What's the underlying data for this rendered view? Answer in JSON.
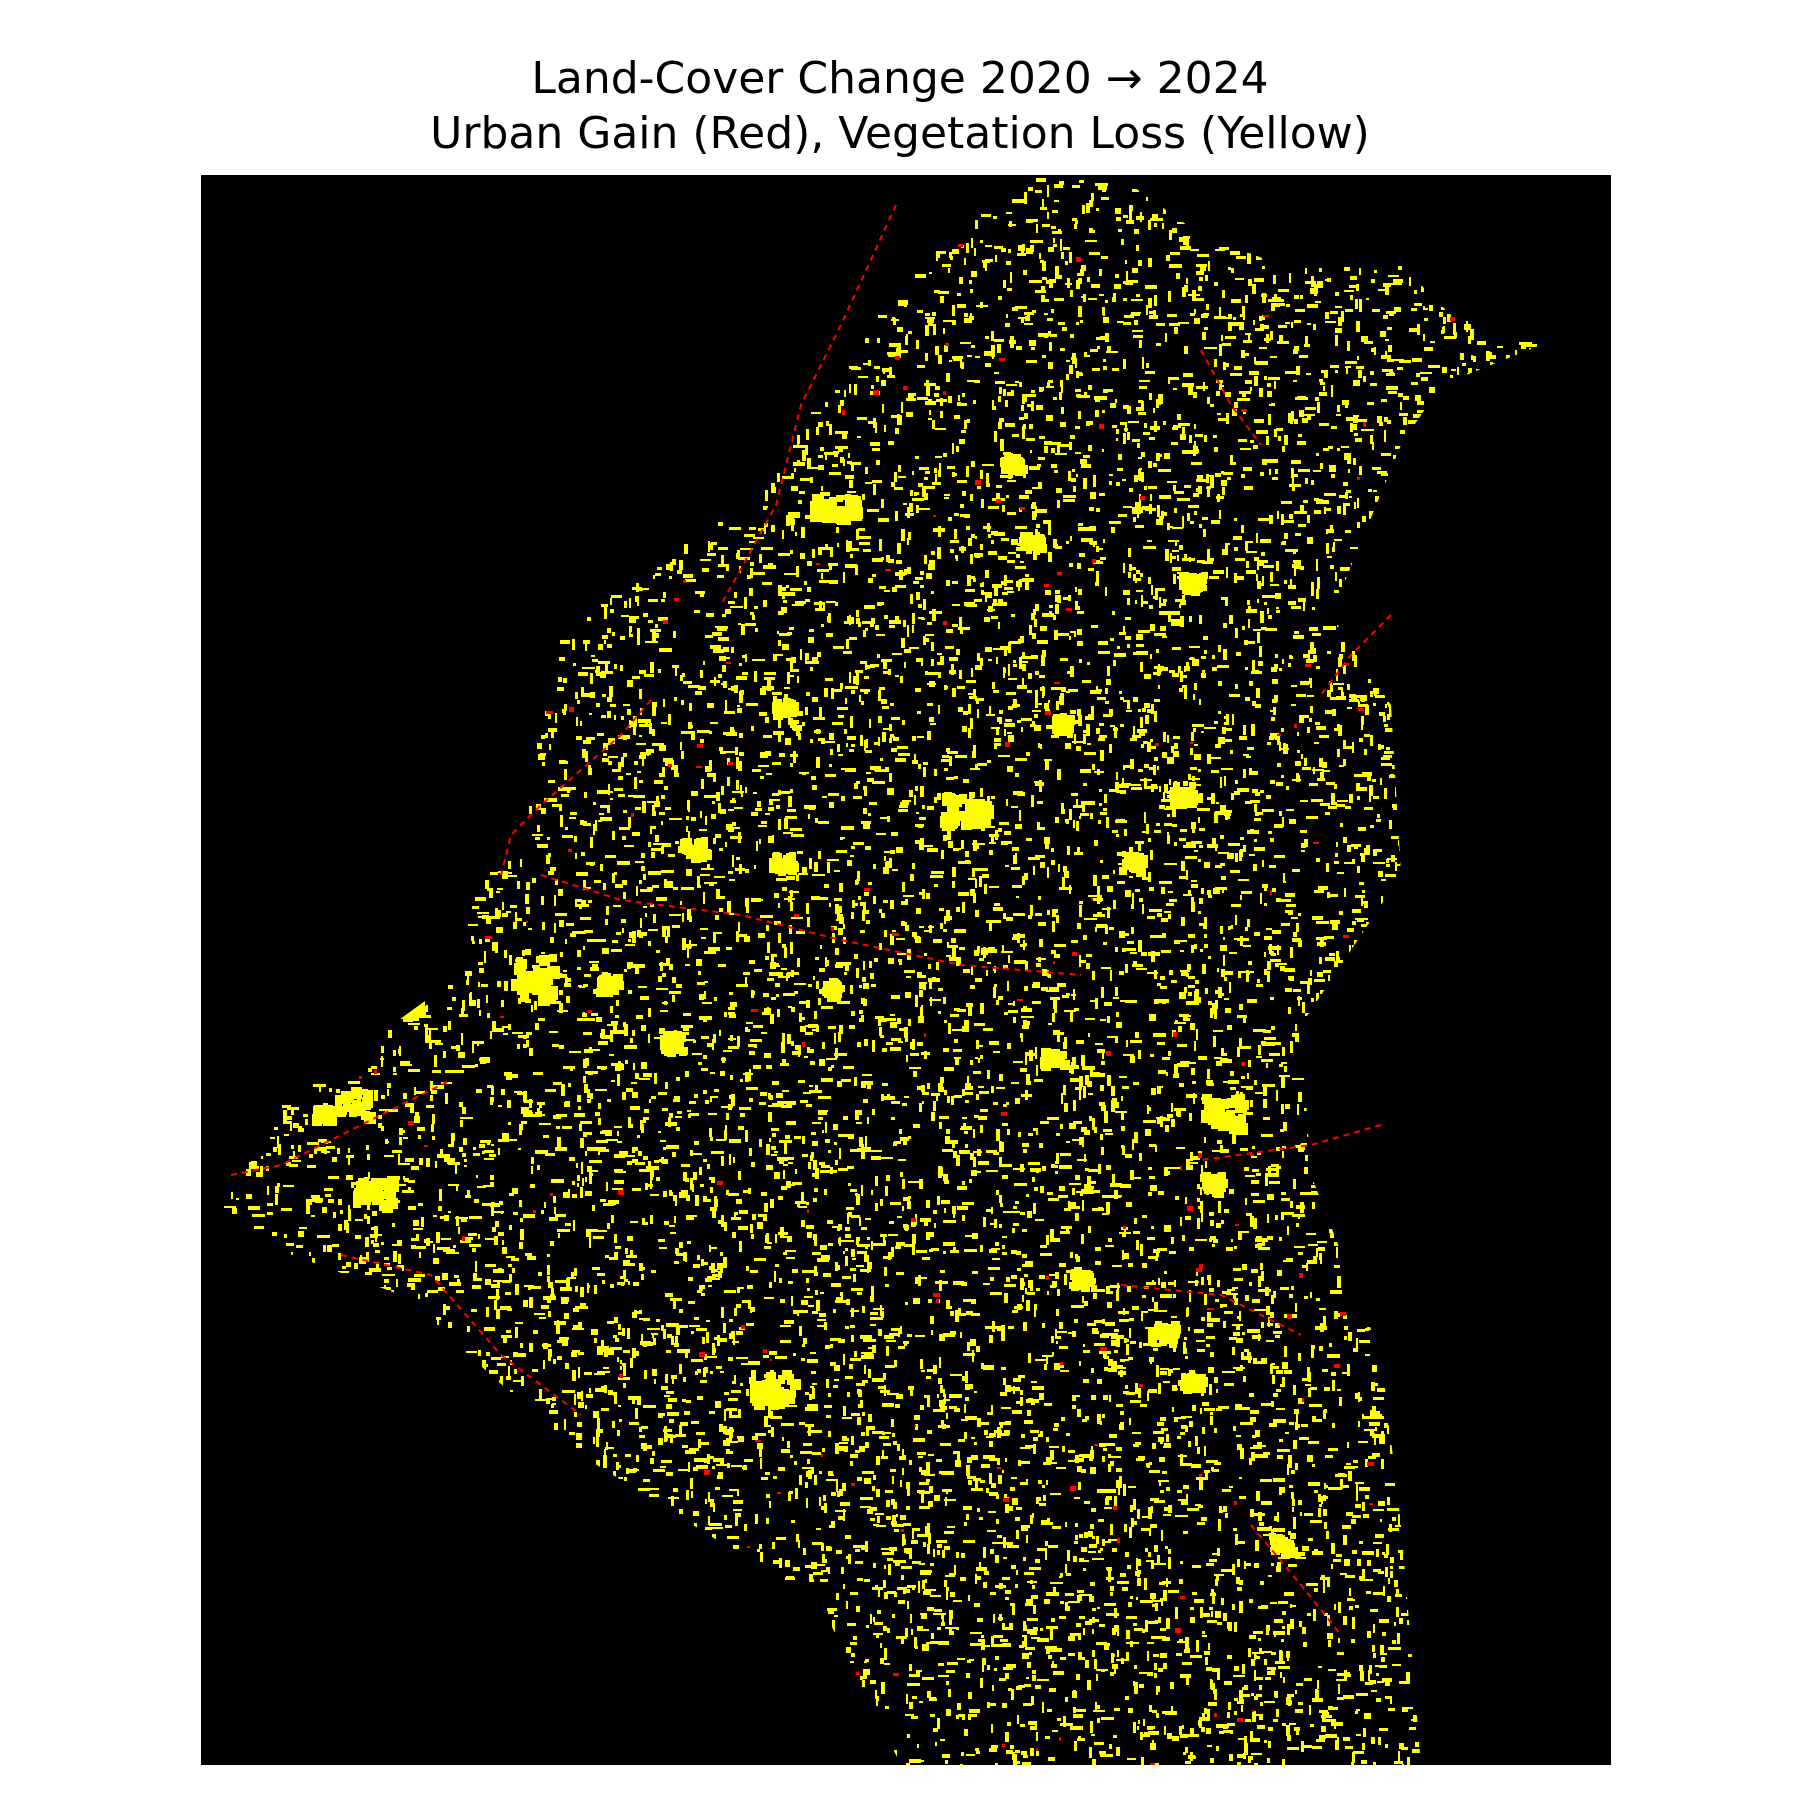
{
  "figure": {
    "title_line_1": "Land-Cover Change 2020 → 2024",
    "title_line_2": "Urban Gain (Red), Vegetation Loss (Yellow)"
  },
  "map": {
    "background_color": "#000000",
    "legend_classes": [
      {
        "class": "Urban Gain",
        "color": "#ff0000"
      },
      {
        "class": "Vegetation Loss",
        "color": "#ffff00"
      }
    ]
  }
}
